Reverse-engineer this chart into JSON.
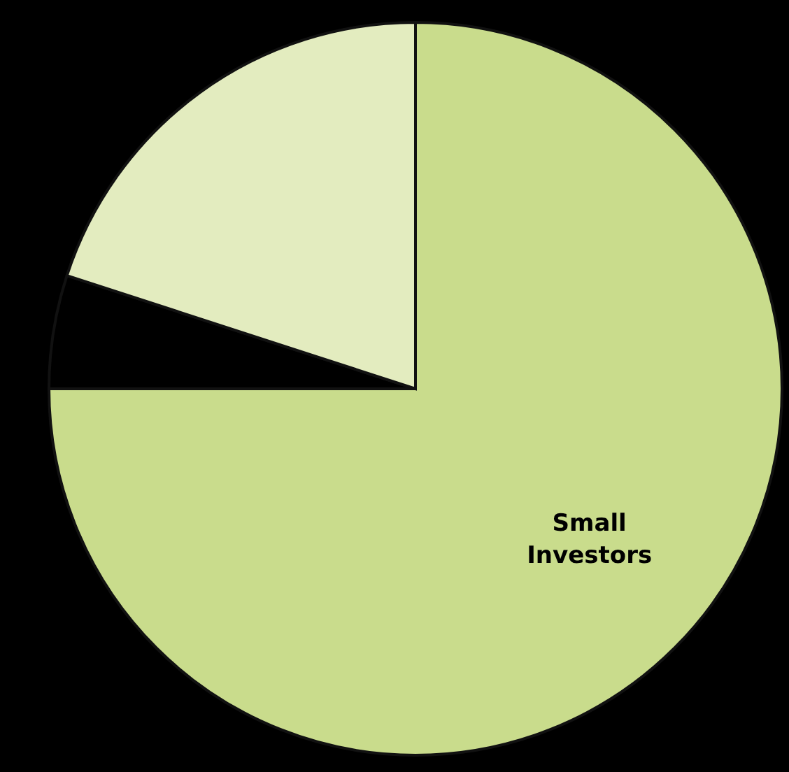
{
  "chart_data": {
    "type": "pie",
    "categories": [
      "Small Investors",
      null,
      null
    ],
    "values": [
      75,
      5,
      20
    ],
    "colors": [
      "#c9dc8c",
      "#000000",
      "#e3ecbf"
    ]
  }
}
